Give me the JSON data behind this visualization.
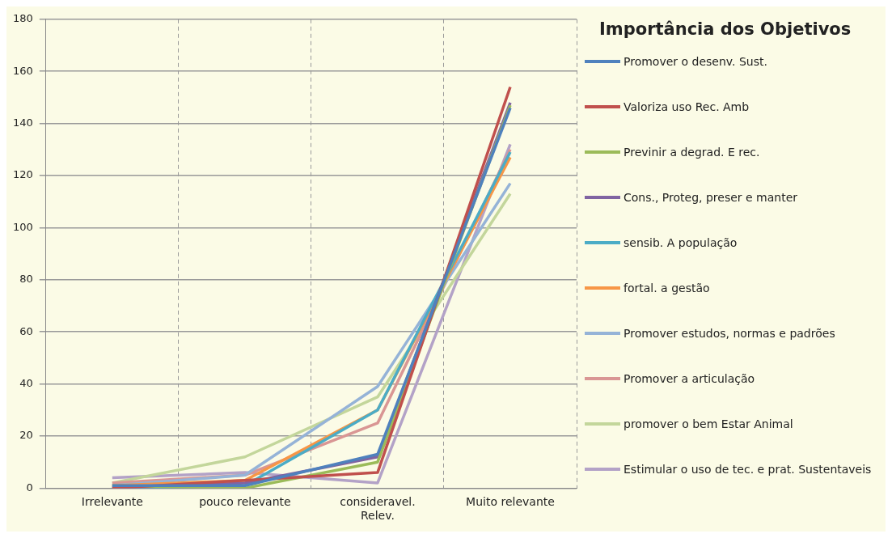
{
  "chart_data": {
    "type": "line",
    "legend_title": "Importância dos Objetivos",
    "categories": [
      "Irrelevante",
      "pouco relevante",
      "consideravel. Relev.",
      "Muito relevante"
    ],
    "series": [
      {
        "name": "Promover o desenv. Sust.",
        "color": "#4f81bd",
        "values": [
          1,
          1,
          13,
          146
        ]
      },
      {
        "name": "Valoriza uso Rec. Amb",
        "color": "#c0504d",
        "values": [
          0,
          3,
          6,
          154
        ]
      },
      {
        "name": "Previnir a degrad. E rec.",
        "color": "#9bbb59",
        "values": [
          1,
          0,
          10,
          147
        ]
      },
      {
        "name": "Cons., Proteg, preser e manter",
        "color": "#8064a2",
        "values": [
          0,
          2,
          12,
          148
        ]
      },
      {
        "name": "sensib. A população",
        "color": "#4bacc6",
        "values": [
          0,
          1,
          30,
          129
        ]
      },
      {
        "name": "fortal. a gestão",
        "color": "#f79646",
        "values": [
          1,
          3,
          30,
          127
        ]
      },
      {
        "name": "Promover estudos, normas e padrões",
        "color": "#95b3d7",
        "values": [
          1,
          5,
          39,
          117
        ]
      },
      {
        "name": "Promover a articulação",
        "color": "#d99694",
        "values": [
          2,
          5,
          25,
          130
        ]
      },
      {
        "name": "promover o bem Estar Animal",
        "color": "#c3d69b",
        "values": [
          2,
          12,
          35,
          113
        ]
      },
      {
        "name": "Estimular o uso de tec. e prat. Sustentaveis",
        "color": "#b3a2c7",
        "values": [
          4,
          6,
          2,
          132
        ]
      }
    ],
    "ylim": [
      0,
      180
    ],
    "yticks": [
      0,
      20,
      40,
      60,
      80,
      100,
      120,
      140,
      160,
      180
    ],
    "grid": true,
    "legend": "right",
    "marker": "none",
    "line_style": "solid"
  }
}
